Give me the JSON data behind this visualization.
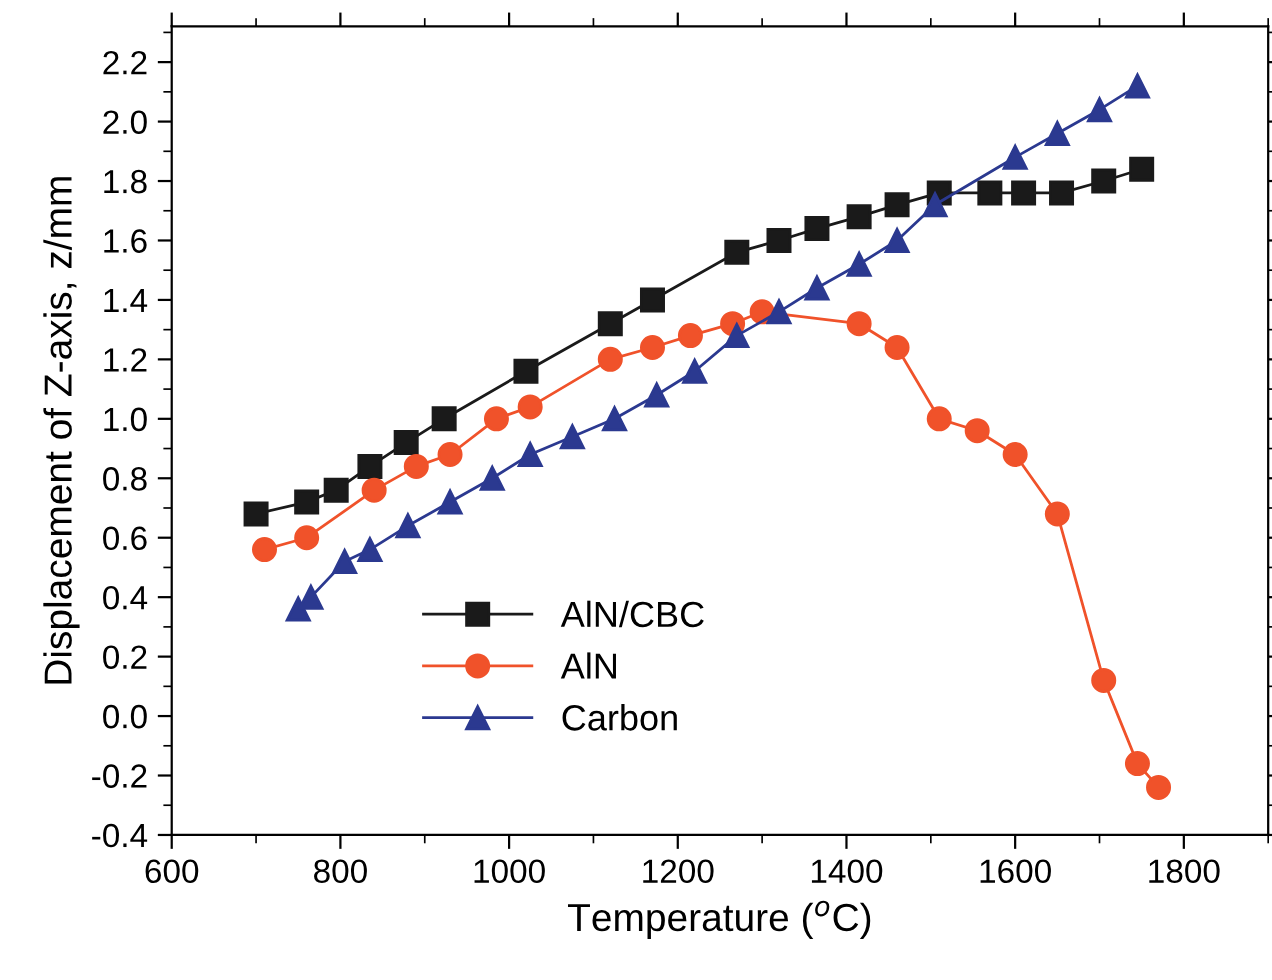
{
  "chart_data": {
    "type": "line",
    "xlabel": "Temperature ($^{o}$C)",
    "ylabel": "Displacement of Z-axis, z/mm",
    "xlim": [
      600,
      1900
    ],
    "xticks": [
      600,
      800,
      1000,
      1200,
      1400,
      1600,
      1800
    ],
    "ylim": [
      -0.4,
      2.32
    ],
    "yticks": [
      -0.4,
      -0.2,
      {
        "value": 0,
        "label": "0.0"
      },
      0.2,
      0.4,
      0.6,
      0.8,
      {
        "value": 1,
        "label": "1.0"
      },
      1.2,
      1.4,
      1.6,
      1.8,
      {
        "value": 2,
        "label": "2.0"
      },
      2.2
    ],
    "grid": false,
    "legend": "bottom left",
    "line_style": "solid",
    "series": [
      {
        "name": "AlN/CBC",
        "color": "#1a1a1a",
        "marker": "square",
        "x": [
          700,
          760,
          795,
          835,
          878,
          923,
          1020,
          1120,
          1170,
          1270,
          1320,
          1365,
          1415,
          1460,
          1510,
          1570,
          1610,
          1655,
          1705,
          1750
        ],
        "values": [
          0.68,
          0.72,
          0.76,
          0.84,
          0.92,
          1.0,
          1.16,
          1.32,
          1.4,
          1.56,
          1.6,
          1.64,
          1.68,
          1.72,
          1.76,
          1.76,
          1.76,
          1.76,
          1.8,
          1.84
        ]
      },
      {
        "name": "AlN",
        "color": "#f0522a",
        "marker": "circle",
        "x": [
          710,
          760,
          840,
          890,
          930,
          985,
          1025,
          1120,
          1170,
          1215,
          1265,
          1300,
          1415,
          1460,
          1510,
          1555,
          1600,
          1650,
          1705,
          1745,
          1770
        ],
        "values": [
          0.56,
          0.6,
          0.76,
          0.84,
          0.88,
          1.0,
          1.04,
          1.2,
          1.24,
          1.28,
          1.32,
          1.36,
          1.32,
          1.24,
          1.0,
          0.96,
          0.88,
          0.68,
          0.12,
          -0.16,
          -0.24
        ]
      },
      {
        "name": "Carbon",
        "color": "#2b3990",
        "marker": "triangle",
        "x": [
          750,
          765,
          805,
          835,
          880,
          930,
          980,
          1025,
          1075,
          1125,
          1175,
          1220,
          1270,
          1320,
          1365,
          1415,
          1460,
          1505,
          1600,
          1650,
          1700,
          1745
        ],
        "values": [
          0.36,
          0.4,
          0.52,
          0.56,
          0.64,
          0.72,
          0.8,
          0.88,
          0.94,
          1.0,
          1.08,
          1.16,
          1.28,
          1.36,
          1.44,
          1.52,
          1.6,
          1.72,
          1.88,
          1.96,
          2.04,
          2.12
        ]
      }
    ]
  }
}
